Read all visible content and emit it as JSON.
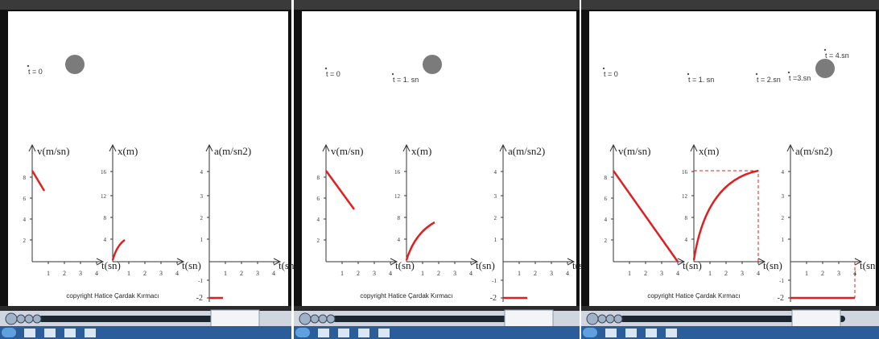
{
  "panels": [
    {
      "time_labels": [
        "t = 0"
      ],
      "graphs": [
        {
          "label": "v(m/sn)",
          "yticks": [
            "8",
            "6",
            "4",
            "2"
          ],
          "xticks": [
            "1",
            "2",
            "3",
            "4"
          ],
          "xlabel": "t(sn)"
        },
        {
          "label": "x(m)",
          "yticks": [
            "16",
            "12",
            "8",
            "4"
          ],
          "xticks": [
            "1",
            "2",
            "3",
            "4"
          ],
          "xlabel": "t(sn)"
        },
        {
          "label": "a(m/sn2)",
          "yticks": [
            "4",
            "3",
            "2",
            "1",
            "-1",
            "-2"
          ],
          "xticks": [
            "1",
            "2",
            "3",
            "4"
          ],
          "xlabel": "t(sn"
        }
      ],
      "copyright": "copyright Hatice Çardak Kırmacı"
    },
    {
      "time_labels": [
        "t = 0",
        "t = 1. sn"
      ],
      "graphs": [
        {
          "label": "v(m/sn)",
          "yticks": [
            "8",
            "6",
            "4",
            "2"
          ],
          "xticks": [
            "1",
            "2",
            "3",
            "4"
          ],
          "xlabel": "t(sn)"
        },
        {
          "label": "x(m)",
          "yticks": [
            "16",
            "12",
            "8",
            "4"
          ],
          "xticks": [
            "1",
            "2",
            "3",
            "4"
          ],
          "xlabel": "t(sn)"
        },
        {
          "label": "a(m/sn2)",
          "yticks": [
            "4",
            "3",
            "2",
            "1",
            "-1",
            "-2"
          ],
          "xticks": [
            "1",
            "2",
            "3",
            "4"
          ],
          "xlabel": "t(sn"
        }
      ],
      "copyright": "copyright Hatice Çardak Kırmacı"
    },
    {
      "time_labels": [
        "t = 0",
        "t = 1. sn",
        "t = 2.sn",
        "t =3.sn",
        "t = 4.sn"
      ],
      "graphs": [
        {
          "label": "v(m/sn)",
          "yticks": [
            "8",
            "6",
            "4",
            "2"
          ],
          "xticks": [
            "1",
            "2",
            "3",
            "4"
          ],
          "xlabel": "t(sn)"
        },
        {
          "label": "x(m)",
          "yticks": [
            "16",
            "12",
            "8",
            "4"
          ],
          "xticks": [
            "1",
            "2",
            "3",
            "4"
          ],
          "xlabel": "t(sn)"
        },
        {
          "label": "a(m/sn2)",
          "yticks": [
            "4",
            "3",
            "2",
            "1",
            "-1",
            "-2"
          ],
          "xticks": [
            "1",
            "2",
            "3",
            "4"
          ],
          "xlabel": "t(sn"
        }
      ],
      "copyright": "copyright Hatice Çardak Kırmacı"
    }
  ]
}
